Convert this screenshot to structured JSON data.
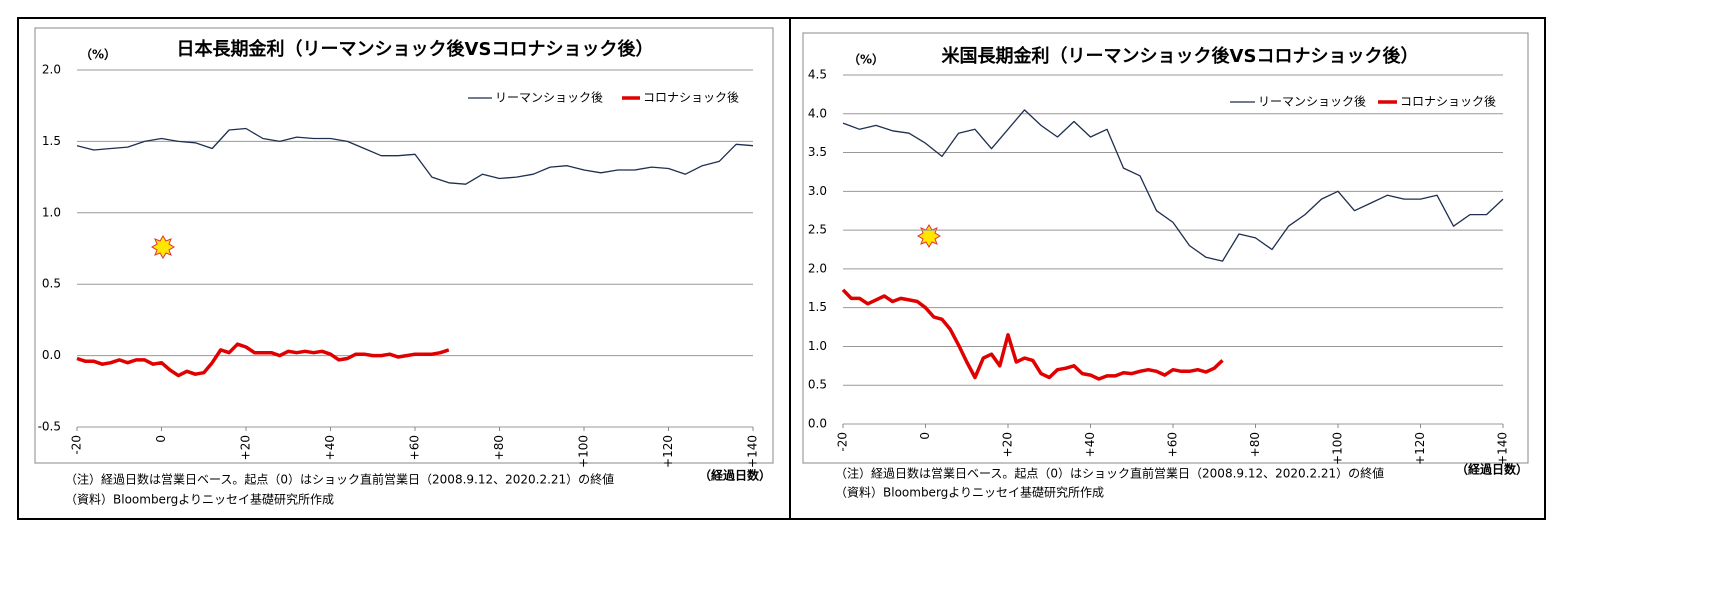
{
  "chart_data": [
    {
      "type": "line",
      "title": "日本長期金利（リーマンショック後VSコロナショック後）",
      "y_unit": "（%）",
      "x_label": "（経過日数）",
      "note": "（注）経過日数は営業日ベース。起点（0）はショック直前営業日（2008.9.12、2020.2.21）の終値",
      "source": "（資料）Bloombergよりニッセイ基礎研究所作成",
      "xlim": [
        -20,
        140
      ],
      "xticks": [
        -20,
        0,
        {
          "value": 20,
          "label": "+20"
        },
        {
          "value": 40,
          "label": "+40"
        },
        {
          "value": 60,
          "label": "+60"
        },
        {
          "value": 80,
          "label": "+80"
        },
        {
          "value": 100,
          "label": "+100"
        },
        {
          "value": 120,
          "label": "+120"
        },
        {
          "value": 140,
          "label": "+140"
        }
      ],
      "ylim": [
        -0.5,
        2
      ],
      "yticks": [
        -0.5,
        {
          "value": 0,
          "label": "0.0"
        },
        0.5,
        {
          "value": 1,
          "label": "1.0"
        },
        1.5,
        {
          "value": 2,
          "label": "2.0"
        }
      ],
      "grid": true,
      "legend": "upper right",
      "series": [
        {
          "name": "リーマンショック後",
          "color": "#1f2f4f",
          "x": [
            -20,
            -16,
            -12,
            -8,
            -4,
            0,
            4,
            8,
            12,
            16,
            20,
            24,
            28,
            32,
            36,
            40,
            44,
            48,
            52,
            56,
            60,
            64,
            68,
            72,
            76,
            80,
            84,
            88,
            92,
            96,
            100,
            104,
            108,
            112,
            116,
            120,
            124,
            128,
            132,
            136,
            140
          ],
          "values": [
            1.47,
            1.44,
            1.45,
            1.46,
            1.5,
            1.52,
            1.5,
            1.49,
            1.45,
            1.58,
            1.59,
            1.52,
            1.5,
            1.53,
            1.52,
            1.52,
            1.5,
            1.45,
            1.4,
            1.4,
            1.41,
            1.25,
            1.21,
            1.2,
            1.27,
            1.24,
            1.25,
            1.27,
            1.32,
            1.33,
            1.3,
            1.28,
            1.3,
            1.3,
            1.32,
            1.31,
            1.27,
            1.33,
            1.36,
            1.48,
            1.47
          ]
        },
        {
          "name": "コロナショック後",
          "color": "#e00000",
          "x": [
            -20,
            -18,
            -16,
            -14,
            -12,
            -10,
            -8,
            -6,
            -4,
            -2,
            0,
            2,
            4,
            6,
            8,
            10,
            12,
            14,
            16,
            18,
            20,
            22,
            24,
            26,
            28,
            30,
            32,
            34,
            36,
            38,
            40,
            42,
            44,
            46,
            48,
            50,
            52,
            54,
            56,
            58,
            60,
            62,
            64,
            66,
            68
          ],
          "values": [
            -0.02,
            -0.04,
            -0.04,
            -0.06,
            -0.05,
            -0.03,
            -0.05,
            -0.03,
            -0.03,
            -0.06,
            -0.05,
            -0.1,
            -0.14,
            -0.11,
            -0.13,
            -0.12,
            -0.05,
            0.04,
            0.02,
            0.08,
            0.06,
            0.02,
            0.02,
            0.02,
            0.0,
            0.03,
            0.02,
            0.03,
            0.02,
            0.03,
            0.01,
            -0.03,
            -0.02,
            0.01,
            0.01,
            0.0,
            0.0,
            0.01,
            -0.01,
            0.0,
            0.01,
            0.01,
            0.01,
            0.02,
            0.04
          ]
        }
      ]
    },
    {
      "type": "line",
      "title": "米国長期金利（リーマンショック後VSコロナショック後）",
      "y_unit": "（%）",
      "x_label": "（経過日数）",
      "note": "（注）経過日数は営業日ベース。起点（0）はショック直前営業日（2008.9.12、2020.2.21）の終値",
      "source": "（資料）Bloombergよりニッセイ基礎研究所作成",
      "xlim": [
        -20,
        140
      ],
      "xticks": [
        -20,
        0,
        {
          "value": 20,
          "label": "+20"
        },
        {
          "value": 40,
          "label": "+40"
        },
        {
          "value": 60,
          "label": "+60"
        },
        {
          "value": 80,
          "label": "+80"
        },
        {
          "value": 100,
          "label": "+100"
        },
        {
          "value": 120,
          "label": "+120"
        },
        {
          "value": 140,
          "label": "+140"
        }
      ],
      "ylim": [
        0,
        4.5
      ],
      "yticks": [
        {
          "value": 0,
          "label": "0.0"
        },
        0.5,
        {
          "value": 1,
          "label": "1.0"
        },
        1.5,
        {
          "value": 2,
          "label": "2.0"
        },
        2.5,
        {
          "value": 3,
          "label": "3.0"
        },
        3.5,
        {
          "value": 4,
          "label": "4.0"
        },
        4.5
      ],
      "grid": true,
      "legend": "upper right",
      "series": [
        {
          "name": "リーマンショック後",
          "color": "#1f2f4f",
          "x": [
            -20,
            -16,
            -12,
            -8,
            -4,
            0,
            4,
            8,
            12,
            16,
            20,
            24,
            28,
            32,
            36,
            40,
            44,
            48,
            52,
            56,
            60,
            64,
            68,
            72,
            76,
            80,
            84,
            88,
            92,
            96,
            100,
            104,
            108,
            112,
            116,
            120,
            124,
            128,
            132,
            136,
            140
          ],
          "values": [
            3.88,
            3.8,
            3.85,
            3.78,
            3.75,
            3.62,
            3.45,
            3.75,
            3.8,
            3.55,
            3.8,
            4.05,
            3.85,
            3.7,
            3.9,
            3.7,
            3.8,
            3.3,
            3.2,
            2.75,
            2.6,
            2.3,
            2.15,
            2.1,
            2.45,
            2.4,
            2.25,
            2.55,
            2.7,
            2.9,
            3.0,
            2.75,
            2.85,
            2.95,
            2.9,
            2.9,
            2.95,
            2.55,
            2.7,
            2.7,
            2.9
          ]
        },
        {
          "name": "コロナショック後",
          "color": "#e00000",
          "x": [
            -20,
            -18,
            -16,
            -14,
            -12,
            -10,
            -8,
            -6,
            -4,
            -2,
            0,
            2,
            4,
            6,
            8,
            10,
            12,
            14,
            16,
            18,
            20,
            22,
            24,
            26,
            28,
            30,
            32,
            34,
            36,
            38,
            40,
            42,
            44,
            46,
            48,
            50,
            52,
            54,
            56,
            58,
            60,
            62,
            64,
            66,
            68,
            70,
            72
          ],
          "values": [
            1.73,
            1.62,
            1.62,
            1.55,
            1.6,
            1.65,
            1.58,
            1.62,
            1.6,
            1.58,
            1.5,
            1.38,
            1.35,
            1.22,
            1.02,
            0.8,
            0.6,
            0.85,
            0.9,
            0.75,
            1.15,
            0.8,
            0.85,
            0.82,
            0.65,
            0.6,
            0.7,
            0.72,
            0.75,
            0.65,
            0.63,
            0.58,
            0.62,
            0.62,
            0.66,
            0.65,
            0.68,
            0.7,
            0.68,
            0.63,
            0.7,
            0.68,
            0.68,
            0.7,
            0.67,
            0.72,
            0.82
          ]
        }
      ]
    }
  ]
}
